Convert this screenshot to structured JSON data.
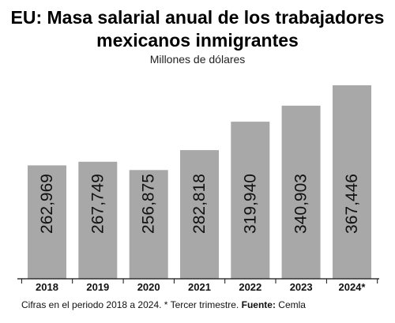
{
  "chart_data": {
    "type": "bar",
    "title": "EU: Masa salarial anual de los trabajadores mexicanos inmigrantes",
    "subtitle": "Millones de dólares",
    "categories": [
      "2018",
      "2019",
      "2020",
      "2021",
      "2022",
      "2023",
      "2024*"
    ],
    "values": [
      262969,
      267749,
      256875,
      282818,
      319940,
      340903,
      367446
    ],
    "value_labels": [
      "262,969",
      "267,749",
      "256,875",
      "282,818",
      "319,940",
      "340,903",
      "367,446"
    ],
    "bar_color": "#a8a8a8",
    "grid": false
  },
  "footnote": {
    "text": "Cifras en el periodo 2018 a 2024. * Tercer trimestre.",
    "source_label": "Fuente:",
    "source": "Cemla"
  }
}
